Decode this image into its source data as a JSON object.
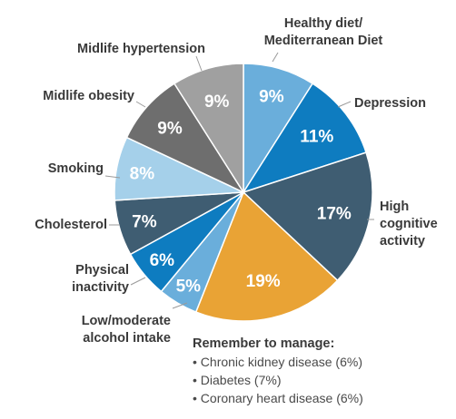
{
  "chart_data": {
    "type": "pie",
    "slices": [
      {
        "label": "Healthy diet/ Mediterranean Diet",
        "lines": [
          "Healthy diet/",
          "Mediterranean Diet"
        ],
        "value": 9,
        "pct": "9%",
        "color": "#6aaedb"
      },
      {
        "label": "Depression",
        "lines": [
          "Depression"
        ],
        "value": 11,
        "pct": "11%",
        "color": "#0e7cc0"
      },
      {
        "label": "High cognitive activity",
        "lines": [
          "High",
          "cognitive",
          "activity"
        ],
        "value": 17,
        "pct": "17%",
        "color": "#3f5d72"
      },
      {
        "label": "",
        "lines": [],
        "value": 19,
        "pct": "19%",
        "color": "#e9a335"
      },
      {
        "label": "Low/moderate alcohol intake",
        "lines": [
          "Low/moderate",
          "alcohol intake"
        ],
        "value": 5,
        "pct": "5%",
        "color": "#6aaedb"
      },
      {
        "label": "Physical inactivity",
        "lines": [
          "Physical",
          "inactivity"
        ],
        "value": 6,
        "pct": "6%",
        "color": "#0e7cc0"
      },
      {
        "label": "Cholesterol",
        "lines": [
          "Cholesterol"
        ],
        "value": 7,
        "pct": "7%",
        "color": "#3f5d72"
      },
      {
        "label": "Smoking",
        "lines": [
          "Smoking"
        ],
        "value": 8,
        "pct": "8%",
        "color": "#a5d0ea"
      },
      {
        "label": "Midlife obesity",
        "lines": [
          "Midlife obesity"
        ],
        "value": 9,
        "pct": "9%",
        "color": "#6e6e6e"
      },
      {
        "label": "Midlife hypertension",
        "lines": [
          "Midlife hypertension"
        ],
        "value": 9,
        "pct": "9%",
        "color": "#a0a0a0"
      }
    ],
    "note": {
      "title": "Remember to manage:",
      "items": [
        "• Chronic kidney disease (6%)",
        "• Diabetes (7%)",
        "• Coronary heart disease (6%)"
      ]
    }
  }
}
